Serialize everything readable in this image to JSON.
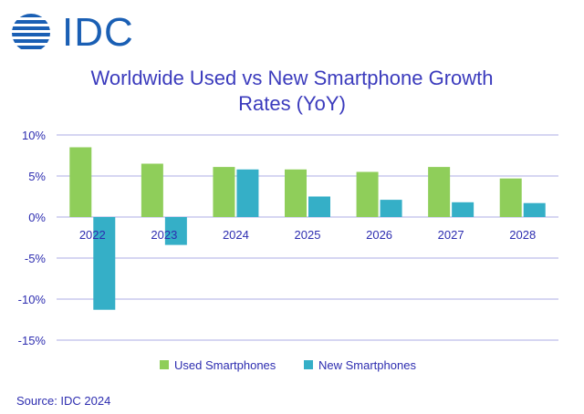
{
  "logo": {
    "text": "IDC",
    "color": "#1a5fb4"
  },
  "chart_data": {
    "type": "bar",
    "title": "Worldwide Used vs New Smartphone Growth Rates (YoY)",
    "title_lines": [
      "Worldwide Used vs New Smartphone Growth",
      "Rates (YoY)"
    ],
    "categories": [
      "2022",
      "2023",
      "2024",
      "2025",
      "2026",
      "2027",
      "2028"
    ],
    "series": [
      {
        "name": "Used Smartphones",
        "color": "#8fce5a",
        "values": [
          8.5,
          6.5,
          6.1,
          5.8,
          5.5,
          6.1,
          4.7
        ]
      },
      {
        "name": "New Smartphones",
        "color": "#35afc7",
        "values": [
          -11.3,
          -3.4,
          5.8,
          2.5,
          2.1,
          1.8,
          1.7
        ]
      }
    ],
    "ylim": [
      -15,
      10
    ],
    "yticks": [
      10,
      5,
      0,
      -5,
      -10,
      -15
    ],
    "ytick_labels": [
      "10%",
      "5%",
      "0%",
      "-5%",
      "-10%",
      "-15%"
    ],
    "xlabel": "",
    "ylabel": "",
    "grid": true,
    "legend": "bottom-center"
  },
  "source": "Source: IDC 2024"
}
